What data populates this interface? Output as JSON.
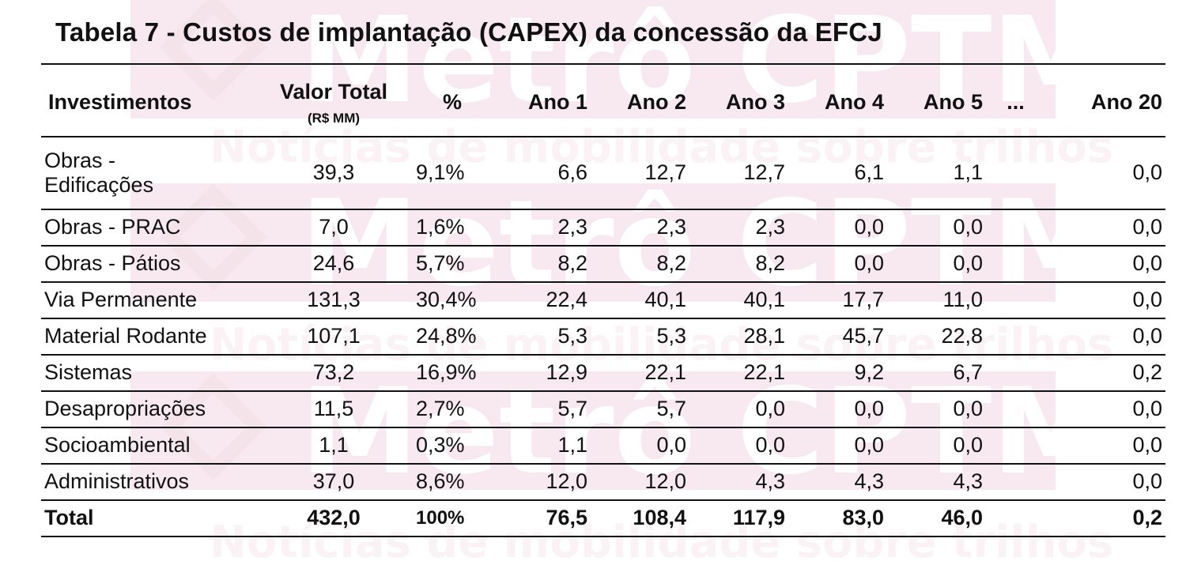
{
  "title": "Tabela 7 - Custos de implantação (CAPEX) da concessão da EFCJ",
  "colors": {
    "text": "#111111",
    "rule": "#111111",
    "watermark": "#f7e9ef"
  },
  "table": {
    "headers": {
      "investimentos": "Investimentos",
      "valor_total": "Valor Total",
      "valor_total_unit": "(R$ MM)",
      "pct": "%",
      "ano1": "Ano 1",
      "ano2": "Ano 2",
      "ano3": "Ano 3",
      "ano4": "Ano 4",
      "ano5": "Ano 5",
      "ellipsis": "...",
      "ano20": "Ano 20"
    },
    "rows": [
      {
        "line1": "Obras -",
        "line2": "Edificações",
        "total": "39,3",
        "pct": "9,1%",
        "a1": "6,6",
        "a2": "12,7",
        "a3": "12,7",
        "a4": "6,1",
        "a5": "1,1",
        "a20": "0,0"
      },
      {
        "name": "Obras - PRAC",
        "total": "7,0",
        "pct": "1,6%",
        "a1": "2,3",
        "a2": "2,3",
        "a3": "2,3",
        "a4": "0,0",
        "a5": "0,0",
        "a20": "0,0"
      },
      {
        "name": "Obras - Pátios",
        "total": "24,6",
        "pct": "5,7%",
        "a1": "8,2",
        "a2": "8,2",
        "a3": "8,2",
        "a4": "0,0",
        "a5": "0,0",
        "a20": "0,0"
      },
      {
        "name": "Via Permanente",
        "total": "131,3",
        "pct": "30,4%",
        "a1": "22,4",
        "a2": "40,1",
        "a3": "40,1",
        "a4": "17,7",
        "a5": "11,0",
        "a20": "0,0"
      },
      {
        "name": "Material Rodante",
        "total": "107,1",
        "pct": "24,8%",
        "a1": "5,3",
        "a2": "5,3",
        "a3": "28,1",
        "a4": "45,7",
        "a5": "22,8",
        "a20": "0,0"
      },
      {
        "name": "Sistemas",
        "total": "73,2",
        "pct": "16,9%",
        "a1": "12,9",
        "a2": "22,1",
        "a3": "22,1",
        "a4": "9,2",
        "a5": "6,7",
        "a20": "0,2"
      },
      {
        "name": "Desapropriações",
        "total": "11,5",
        "pct": "2,7%",
        "a1": "5,7",
        "a2": "5,7",
        "a3": "0,0",
        "a4": "0,0",
        "a5": "0,0",
        "a20": "0,0"
      },
      {
        "name": "Socioambiental",
        "total": "1,1",
        "pct": "0,3%",
        "a1": "1,1",
        "a2": "0,0",
        "a3": "0,0",
        "a4": "0,0",
        "a5": "0,0",
        "a20": "0,0"
      },
      {
        "name": "Administrativos",
        "total": "37,0",
        "pct": "8,6%",
        "a1": "12,0",
        "a2": "12,0",
        "a3": "4,3",
        "a4": "4,3",
        "a5": "4,3",
        "a20": "0,0"
      }
    ],
    "total_row": {
      "name": "Total",
      "total": "432,0",
      "pct": "100%",
      "a1": "76,5",
      "a2": "108,4",
      "a3": "117,9",
      "a4": "83,0",
      "a5": "46,0",
      "a20": "0,2"
    }
  },
  "watermark": {
    "brand": "Metrô CPTM",
    "tagline": "Notícias de mobilidade sobre trilhos"
  }
}
